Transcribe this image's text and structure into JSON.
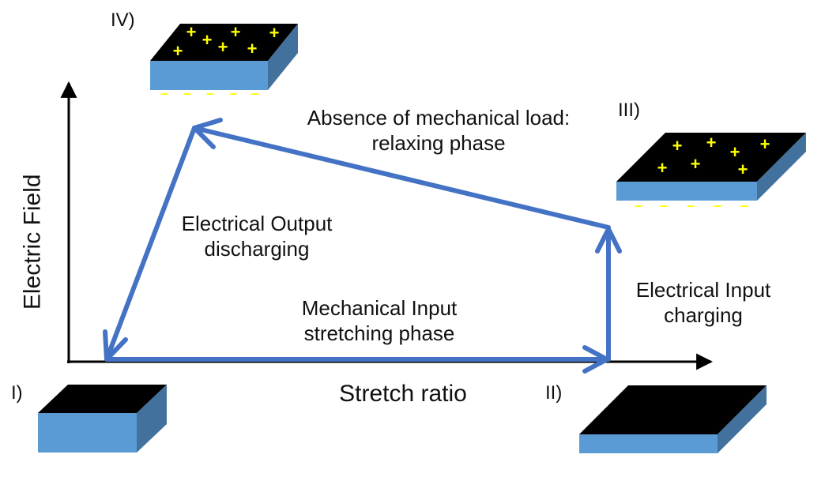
{
  "axes": {
    "x_label": "Stretch ratio",
    "y_label": "Electric Field"
  },
  "states": {
    "i": "I)",
    "ii": "II)",
    "iii": "III)",
    "iv": "IV)"
  },
  "phases": {
    "mechanical_input": [
      "Mechanical Input",
      "stretching phase"
    ],
    "electrical_input": [
      "Electrical Input",
      "charging"
    ],
    "relaxing": [
      "Absence of mechanical load:",
      "relaxing phase"
    ],
    "electrical_output": [
      "Electrical Output",
      "discharging"
    ]
  },
  "symbols": {
    "plus": "+",
    "minus": "–"
  },
  "colors": {
    "cycle_arrow": "#4472C4",
    "block_side": "#5B9BD5",
    "block_side_dark": "#41719C",
    "block_top": "#000000",
    "charge": "#FFFF00",
    "axis": "#000000"
  }
}
